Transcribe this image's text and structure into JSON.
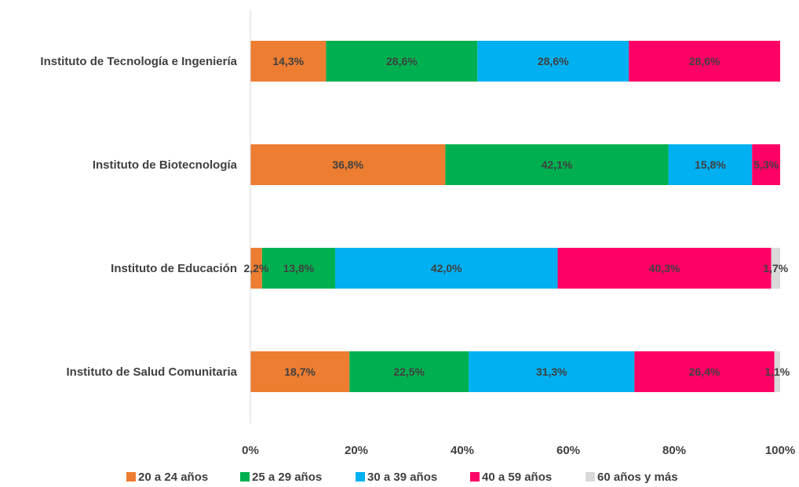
{
  "chart_data": {
    "type": "bar",
    "orientation": "horizontal",
    "stacked": true,
    "categories": [
      "Instituto de Tecnología e Ingeniería",
      "Instituto de Biotecnología",
      "Instituto de Educación",
      "Instituto de Salud Comunitaria"
    ],
    "series": [
      {
        "name": "20 a 24 años",
        "color": "#ED7D31",
        "values": [
          14.3,
          36.8,
          2.2,
          18.7
        ],
        "labels": [
          "14,3%",
          "36,8%",
          "2,2%",
          "18,7%"
        ]
      },
      {
        "name": "25 a 29 años",
        "color": "#00B050",
        "values": [
          28.6,
          42.1,
          13.8,
          22.5
        ],
        "labels": [
          "28,6%",
          "42,1%",
          "13,8%",
          "22,5%"
        ]
      },
      {
        "name": "30 a 39 años",
        "color": "#00B0F0",
        "values": [
          28.6,
          15.8,
          42.0,
          31.3
        ],
        "labels": [
          "28,6%",
          "15,8%",
          "42,0%",
          "31,3%"
        ]
      },
      {
        "name": "40 a 59 años",
        "color": "#FF0066",
        "values": [
          28.6,
          5.3,
          40.3,
          26.4
        ],
        "labels": [
          "28,6%",
          "5,3%",
          "40,3%",
          "26,4%"
        ]
      },
      {
        "name": "60 años y más",
        "color": "#D9D9D9",
        "values": [
          0,
          0,
          1.7,
          1.1
        ],
        "labels": [
          "",
          "",
          "1,7%",
          "1,1%"
        ]
      }
    ],
    "x_ticks": [
      "0%",
      "20%",
      "40%",
      "60%",
      "80%",
      "100%"
    ],
    "xlim": [
      0,
      100
    ],
    "grid": false,
    "legend_position": "bottom"
  }
}
